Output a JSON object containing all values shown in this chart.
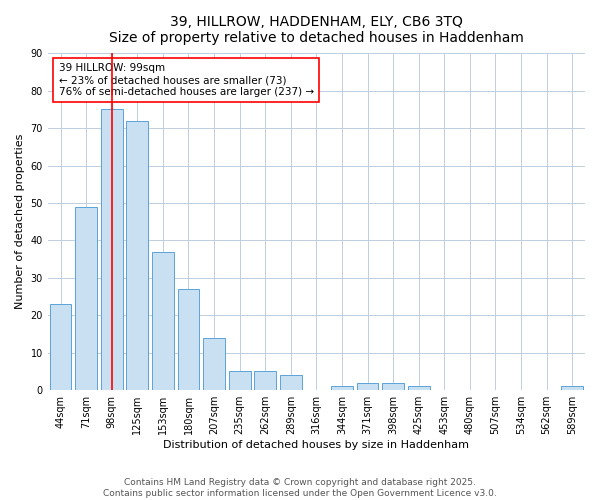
{
  "title_line1": "39, HILLROW, HADDENHAM, ELY, CB6 3TQ",
  "title_line2": "Size of property relative to detached houses in Haddenham",
  "xlabel": "Distribution of detached houses by size in Haddenham",
  "ylabel": "Number of detached properties",
  "categories": [
    "44sqm",
    "71sqm",
    "98sqm",
    "125sqm",
    "153sqm",
    "180sqm",
    "207sqm",
    "235sqm",
    "262sqm",
    "289sqm",
    "316sqm",
    "344sqm",
    "371sqm",
    "398sqm",
    "425sqm",
    "453sqm",
    "480sqm",
    "507sqm",
    "534sqm",
    "562sqm",
    "589sqm"
  ],
  "values": [
    23,
    49,
    75,
    72,
    37,
    27,
    14,
    5,
    5,
    4,
    0,
    1,
    2,
    2,
    1,
    0,
    0,
    0,
    0,
    0,
    1
  ],
  "bar_color": "#c9dff2",
  "bar_edge_color": "#5ba3d9",
  "annotation_bar_index": 2,
  "annotation_text_line1": "39 HILLROW: 99sqm",
  "annotation_text_line2": "← 23% of detached houses are smaller (73)",
  "annotation_text_line3": "76% of semi-detached houses are larger (237) →",
  "annotation_box_color": "white",
  "annotation_box_edge_color": "red",
  "ref_line_color": "red",
  "ylim": [
    0,
    90
  ],
  "yticks": [
    0,
    10,
    20,
    30,
    40,
    50,
    60,
    70,
    80,
    90
  ],
  "grid_color": "#c0cfe0",
  "background_color": "white",
  "footer_line1": "Contains HM Land Registry data © Crown copyright and database right 2025.",
  "footer_line2": "Contains public sector information licensed under the Open Government Licence v3.0.",
  "title_fontsize": 10,
  "axis_label_fontsize": 8,
  "tick_fontsize": 7,
  "annotation_fontsize": 7.5,
  "footer_fontsize": 6.5
}
